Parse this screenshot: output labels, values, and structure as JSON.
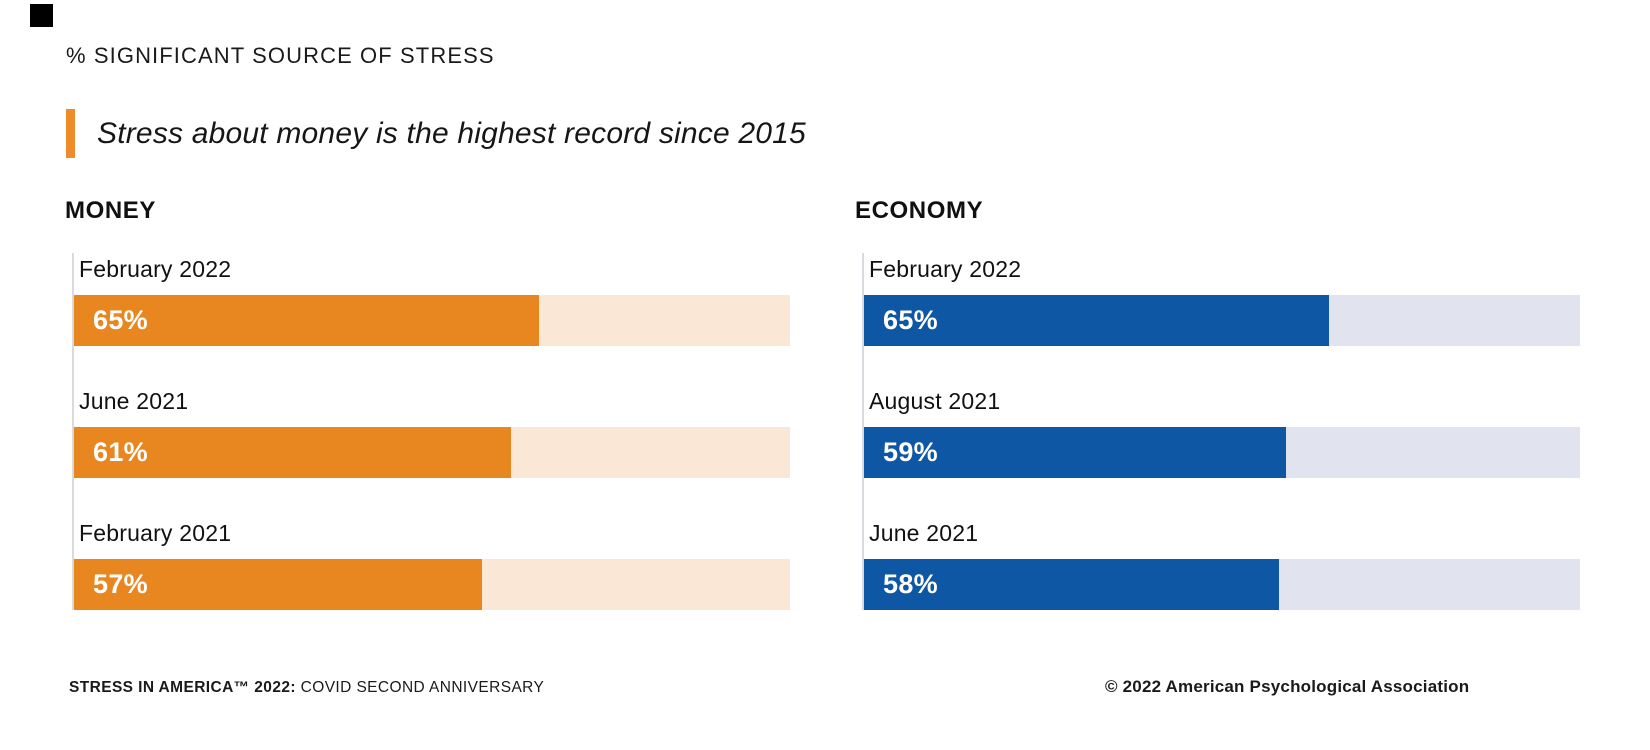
{
  "page": {
    "title": "% SIGNIFICANT SOURCE OF STRESS",
    "subtitle": "Stress about money is the highest record since 2015"
  },
  "colors": {
    "orange_fill": "#E8871F",
    "orange_track": "#FBE7D6",
    "orange_accent": "#EF8C2A",
    "blue_fill": "#0E57A5",
    "blue_track": "#E1E4EE",
    "axis_line": "#D8DADF",
    "text": "#1A1A1A",
    "corner_mark": "#000000"
  },
  "chart_data": [
    {
      "type": "bar",
      "title": "MONEY",
      "orientation": "horizontal",
      "unit": "%",
      "xlim": [
        0,
        100
      ],
      "grid": false,
      "bar_color": "#E8871F",
      "track_color": "#FBE7D6",
      "categories": [
        "February 2022",
        "June 2021",
        "February 2021"
      ],
      "values": [
        65,
        61,
        57
      ],
      "value_labels": [
        "65%",
        "61%",
        "57%"
      ]
    },
    {
      "type": "bar",
      "title": "ECONOMY",
      "orientation": "horizontal",
      "unit": "%",
      "xlim": [
        0,
        100
      ],
      "grid": false,
      "bar_color": "#0E57A5",
      "track_color": "#E1E4EE",
      "categories": [
        "February 2022",
        "August 2021",
        "June 2021"
      ],
      "values": [
        65,
        59,
        58
      ],
      "value_labels": [
        "65%",
        "59%",
        "58%"
      ]
    }
  ],
  "footer": {
    "left_bold": "STRESS IN AMERICA™ 2022:",
    "left_regular": " COVID SECOND ANNIVERSARY",
    "right": "© 2022 American Psychological Association"
  }
}
